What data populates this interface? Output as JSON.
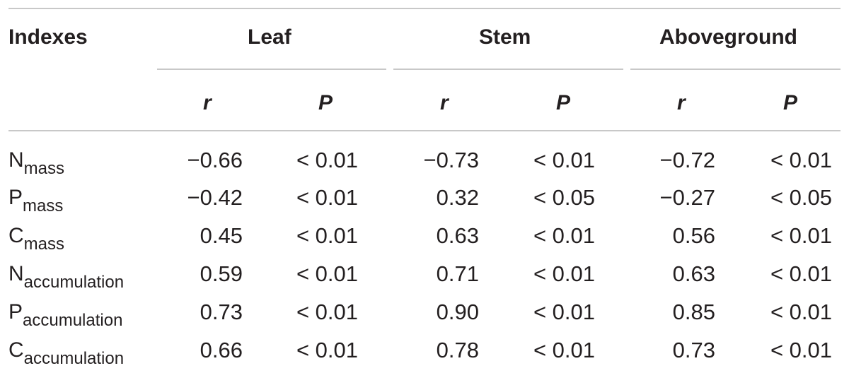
{
  "table": {
    "header": {
      "indexes": "Indexes",
      "groups": [
        "Leaf",
        "Stem",
        "Aboveground"
      ],
      "sub": [
        "r",
        "P",
        "r",
        "P",
        "r",
        "P"
      ]
    },
    "rows": [
      {
        "main": "N",
        "sub": "mass",
        "values": [
          "−0.66",
          "< 0.01",
          "−0.73",
          "< 0.01",
          "−0.72",
          "< 0.01"
        ]
      },
      {
        "main": "P",
        "sub": "mass",
        "values": [
          "−0.42",
          "< 0.01",
          "0.32",
          "< 0.05",
          "−0.27",
          "< 0.05"
        ]
      },
      {
        "main": "C",
        "sub": "mass",
        "values": [
          "0.45",
          "< 0.01",
          "0.63",
          "< 0.01",
          "0.56",
          "< 0.01"
        ]
      },
      {
        "main": "N",
        "sub": "accumulation",
        "values": [
          "0.59",
          "< 0.01",
          "0.71",
          "< 0.01",
          "0.63",
          "< 0.01"
        ]
      },
      {
        "main": "P",
        "sub": "accumulation",
        "values": [
          "0.73",
          "< 0.01",
          "0.90",
          "< 0.01",
          "0.85",
          "< 0.01"
        ]
      },
      {
        "main": "C",
        "sub": "accumulation",
        "values": [
          "0.66",
          "< 0.01",
          "0.78",
          "< 0.01",
          "0.73",
          "< 0.01"
        ]
      }
    ]
  }
}
